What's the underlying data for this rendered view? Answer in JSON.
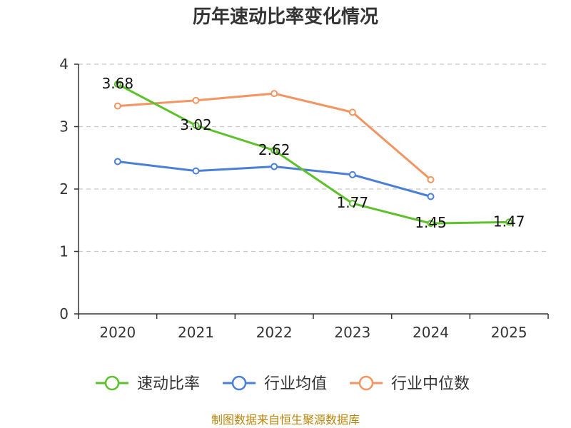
{
  "chart_data": {
    "type": "line",
    "title": "历年速动比率变化情况",
    "categories": [
      "2020",
      "2021",
      "2022",
      "2023",
      "2024",
      "2025"
    ],
    "y_ticks": [
      "0",
      "1",
      "2",
      "3",
      "4"
    ],
    "ylim": [
      0,
      4
    ],
    "grid": true,
    "legend_position": "bottom",
    "series": [
      {
        "name": "速动比率",
        "color": "#5cc12a",
        "values": [
          3.68,
          3.02,
          2.62,
          1.77,
          1.45,
          1.47
        ],
        "labels": [
          "3.68",
          "3.02",
          "2.62",
          "1.77",
          "1.45",
          "1.47"
        ]
      },
      {
        "name": "行业均值",
        "color": "#4a7fd8",
        "values": [
          2.44,
          2.29,
          2.36,
          2.23,
          1.88,
          null
        ]
      },
      {
        "name": "行业中位数",
        "color": "#f39563",
        "values": [
          3.33,
          3.42,
          3.53,
          3.23,
          2.15,
          null
        ]
      }
    ]
  },
  "source": "制图数据来自恒生聚源数据库"
}
